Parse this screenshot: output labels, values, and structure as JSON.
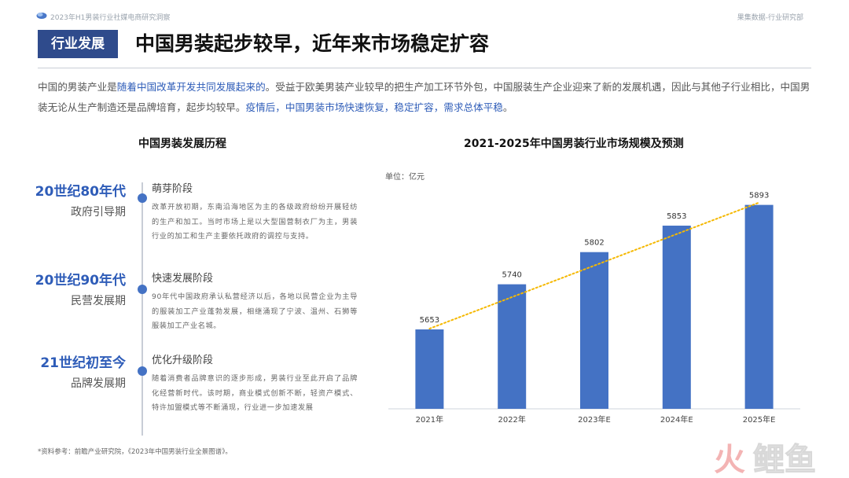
{
  "header": {
    "report_title": "2023年H1男装行业社媒电商研究洞察",
    "department": "果集数据-行业研究部"
  },
  "section_tag": "行业发展",
  "headline": "中国男装起步较早，近年来市场稳定扩容",
  "intro": {
    "p1": "中国的男装产业是",
    "h1": "随着中国改革开发共同发展起来的",
    "p2": "。受益于欧美男装产业较早的把生产加工环节外包，中国服装生产企业迎来了新的发展机遇，因此与其他子行业相比，中国男装无论从生产制造还是品牌培育，起步均较早。",
    "h2": "疫情后，中国男装市场快速恢复，稳定扩容，需求总体平稳",
    "p3": "。"
  },
  "timeline": {
    "title": "中国男装发展历程",
    "eras": [
      {
        "year": "20世纪80年代",
        "name": "政府引导期",
        "stage": "萌芽阶段",
        "desc": "改革开放初期，东南沿海地区为主的各级政府纷纷开展轻纺的生产和加工。当时市场上是以大型国营制衣厂为主，男装行业的加工和生产主要依托政府的调控与支持。"
      },
      {
        "year": "20世纪90年代",
        "name": "民营发展期",
        "stage": "快速发展阶段",
        "desc": "90年代中国政府承认私营经济以后，各地以民营企业为主导的服装加工产业蓬勃发展，相继涌现了宁波、温州、石狮等服装加工产业名城。"
      },
      {
        "year": "21世纪初至今",
        "name": "品牌发展期",
        "stage": "优化升级阶段",
        "desc": "随着消费者品牌意识的逐步形成，男装行业至此开启了品牌化经营新时代。该时期，商业模式创新不断，轻资产模式、特许加盟模式等不断涌现，行业进一步加速发展"
      }
    ]
  },
  "chart_data": {
    "type": "bar",
    "title": "2021-2025年中国男装行业市场规模及预测",
    "unit_label": "单位：亿元",
    "categories": [
      "2021年",
      "2022年",
      "2023年E",
      "2024年E",
      "2025年E"
    ],
    "values": [
      5653,
      5740,
      5802,
      5853,
      5893
    ],
    "ylim": [
      5500,
      5900
    ],
    "bar_color": "#4472c4",
    "trendline_color": "#f5b800",
    "trendline": "dotted",
    "grid": false
  },
  "footnote": "*资料参考：前瞻产业研究院，《2023年中国男装行业全景图谱》。",
  "watermark": "火鲤鱼"
}
